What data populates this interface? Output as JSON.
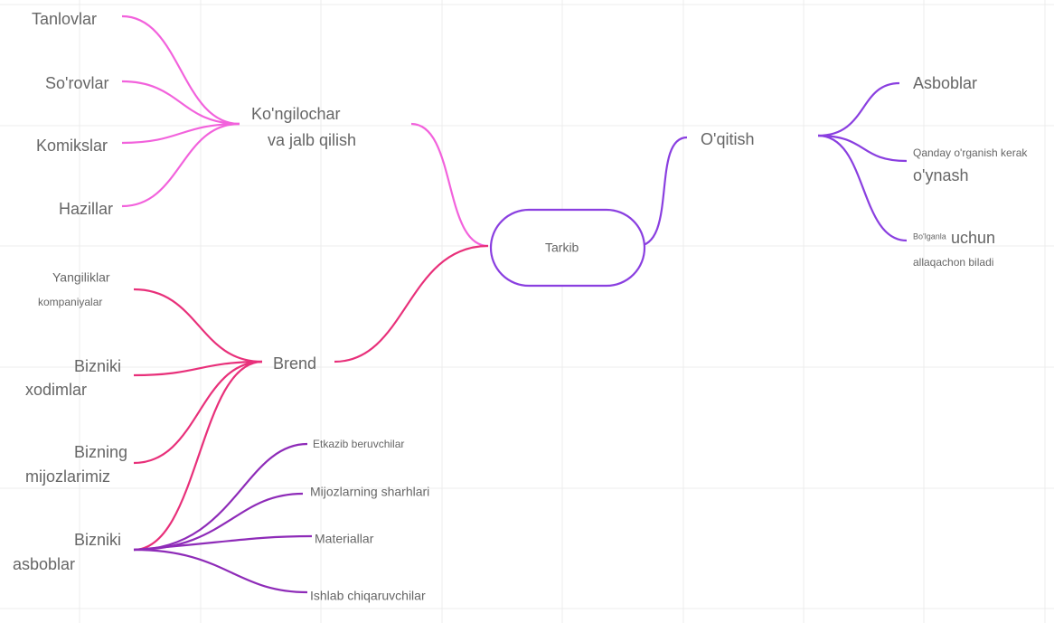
{
  "center": {
    "label": "Tarkib"
  },
  "branches": [
    {
      "label_lines": [
        "Ko'ngilochar",
        "va jalb qilish"
      ],
      "children": [
        {
          "label_lines": [
            "Tanlovlar"
          ]
        },
        {
          "label_lines": [
            "So'rovlar"
          ]
        },
        {
          "label_lines": [
            "Komikslar"
          ]
        },
        {
          "label_lines": [
            "Hazillar"
          ]
        }
      ]
    },
    {
      "label_lines": [
        "Brend"
      ],
      "children": [
        {
          "label_lines": [
            "Yangiliklar",
            "kompaniyalar"
          ]
        },
        {
          "label_lines": [
            "Bizniki",
            "xodimlar"
          ]
        },
        {
          "label_lines": [
            "Bizning",
            "mijozlarimiz"
          ]
        },
        {
          "label_lines": [
            "Bizniki",
            "asboblar"
          ],
          "children": [
            {
              "label_lines": [
                "Etkazib beruvchilar"
              ]
            },
            {
              "label_lines": [
                "Mijozlarning sharhlari"
              ]
            },
            {
              "label_lines": [
                "Materiallar"
              ]
            },
            {
              "label_lines": [
                "Ishlab chiqaruvchilar"
              ]
            }
          ]
        }
      ]
    },
    {
      "label_lines": [
        "O'qitish"
      ],
      "children": [
        {
          "label_lines": [
            "Asboblar"
          ]
        },
        {
          "label_lines": [
            "Qanday o'rganish kerak",
            "o'ynash"
          ]
        },
        {
          "label_lines": [
            "Bo'lganla",
            "uchun",
            "allaqachon biladi"
          ]
        }
      ]
    }
  ]
}
